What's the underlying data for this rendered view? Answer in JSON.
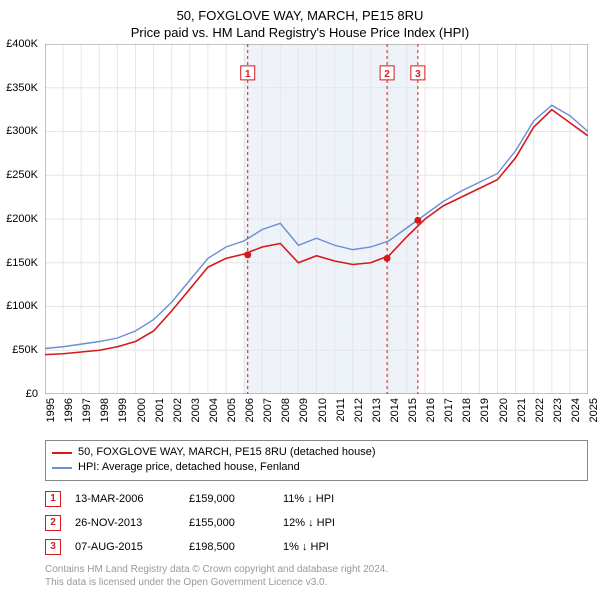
{
  "title": "50, FOXGLOVE WAY, MARCH, PE15 8RU",
  "subtitle": "Price paid vs. HM Land Registry's House Price Index (HPI)",
  "chart": {
    "type": "line",
    "background_color": "#ffffff",
    "grid_color": "#e6e6e6",
    "highlight_band_color": "#eef2f9",
    "highlight_band_xstart": 2006,
    "highlight_band_xend": 2015.6,
    "ylim": [
      0,
      400000
    ],
    "ytick_step": 50000,
    "yticks": [
      "£0",
      "£50K",
      "£100K",
      "£150K",
      "£200K",
      "£250K",
      "£300K",
      "£350K",
      "£400K"
    ],
    "xlim": [
      1995,
      2025
    ],
    "xticks": [
      1995,
      1996,
      1997,
      1998,
      1999,
      2000,
      2001,
      2002,
      2003,
      2004,
      2005,
      2006,
      2007,
      2008,
      2009,
      2010,
      2011,
      2012,
      2013,
      2014,
      2015,
      2016,
      2017,
      2018,
      2019,
      2020,
      2021,
      2022,
      2023,
      2024,
      2025
    ],
    "series": [
      {
        "name": "property",
        "label": "50, FOXGLOVE WAY, MARCH, PE15 8RU (detached house)",
        "color": "#d7191c",
        "line_width": 1.6,
        "data": [
          [
            1995,
            45000
          ],
          [
            1996,
            46000
          ],
          [
            1997,
            48000
          ],
          [
            1998,
            50000
          ],
          [
            1999,
            54000
          ],
          [
            2000,
            60000
          ],
          [
            2001,
            72000
          ],
          [
            2002,
            95000
          ],
          [
            2003,
            120000
          ],
          [
            2004,
            145000
          ],
          [
            2005,
            155000
          ],
          [
            2006,
            160000
          ],
          [
            2007,
            168000
          ],
          [
            2008,
            172000
          ],
          [
            2009,
            150000
          ],
          [
            2010,
            158000
          ],
          [
            2011,
            152000
          ],
          [
            2012,
            148000
          ],
          [
            2013,
            150000
          ],
          [
            2014,
            158000
          ],
          [
            2015,
            180000
          ],
          [
            2016,
            200000
          ],
          [
            2017,
            215000
          ],
          [
            2018,
            225000
          ],
          [
            2019,
            235000
          ],
          [
            2020,
            245000
          ],
          [
            2021,
            270000
          ],
          [
            2022,
            305000
          ],
          [
            2023,
            325000
          ],
          [
            2024,
            310000
          ],
          [
            2025,
            295000
          ]
        ]
      },
      {
        "name": "hpi",
        "label": "HPI: Average price, detached house, Fenland",
        "color": "#6a8fd4",
        "line_width": 1.4,
        "data": [
          [
            1995,
            52000
          ],
          [
            1996,
            54000
          ],
          [
            1997,
            57000
          ],
          [
            1998,
            60000
          ],
          [
            1999,
            64000
          ],
          [
            2000,
            72000
          ],
          [
            2001,
            85000
          ],
          [
            2002,
            105000
          ],
          [
            2003,
            130000
          ],
          [
            2004,
            155000
          ],
          [
            2005,
            168000
          ],
          [
            2006,
            175000
          ],
          [
            2007,
            188000
          ],
          [
            2008,
            195000
          ],
          [
            2009,
            170000
          ],
          [
            2010,
            178000
          ],
          [
            2011,
            170000
          ],
          [
            2012,
            165000
          ],
          [
            2013,
            168000
          ],
          [
            2014,
            175000
          ],
          [
            2015,
            190000
          ],
          [
            2016,
            205000
          ],
          [
            2017,
            220000
          ],
          [
            2018,
            232000
          ],
          [
            2019,
            242000
          ],
          [
            2020,
            252000
          ],
          [
            2021,
            278000
          ],
          [
            2022,
            312000
          ],
          [
            2023,
            330000
          ],
          [
            2024,
            318000
          ],
          [
            2025,
            300000
          ]
        ]
      }
    ],
    "sale_markers": [
      {
        "n": "1",
        "x": 2006.2,
        "y": 159000,
        "color": "#d7191c"
      },
      {
        "n": "2",
        "x": 2013.9,
        "y": 155000,
        "color": "#d7191c"
      },
      {
        "n": "3",
        "x": 2015.6,
        "y": 198500,
        "color": "#d7191c"
      }
    ],
    "marker_line_color": "#d7191c",
    "marker_line_dash": "3,3",
    "marker_label_top_y": 375000,
    "marker_dot_radius": 3.5,
    "title_fontsize": 13,
    "axis_label_fontsize": 11
  },
  "legend": {
    "rows": [
      {
        "color": "#d7191c",
        "label": "50, FOXGLOVE WAY, MARCH, PE15 8RU (detached house)"
      },
      {
        "color": "#6a8fd4",
        "label": "HPI: Average price, detached house, Fenland"
      }
    ]
  },
  "sales": [
    {
      "n": "1",
      "date": "13-MAR-2006",
      "price": "£159,000",
      "delta": "11% ↓ HPI",
      "color": "#d7191c"
    },
    {
      "n": "2",
      "date": "26-NOV-2013",
      "price": "£155,000",
      "delta": "12% ↓ HPI",
      "color": "#d7191c"
    },
    {
      "n": "3",
      "date": "07-AUG-2015",
      "price": "£198,500",
      "delta": "1% ↓ HPI",
      "color": "#d7191c"
    }
  ],
  "footer": {
    "line1": "Contains HM Land Registry data © Crown copyright and database right 2024.",
    "line2": "This data is licensed under the Open Government Licence v3.0."
  }
}
